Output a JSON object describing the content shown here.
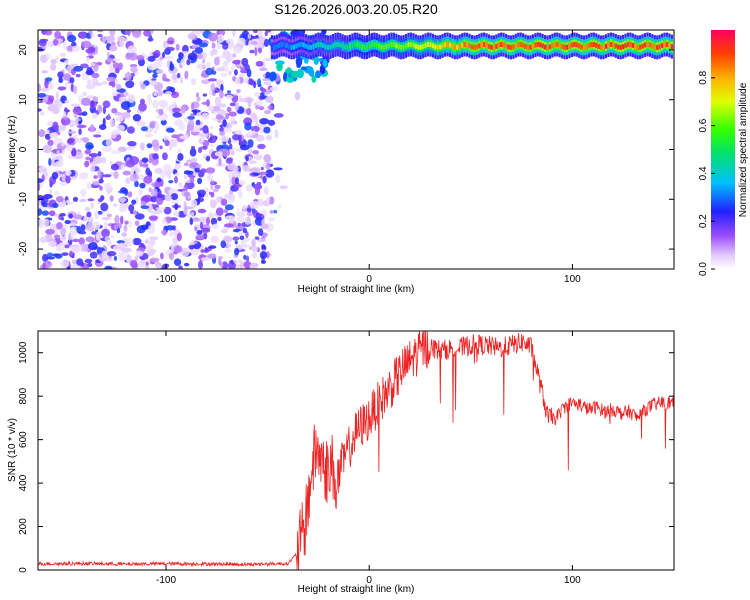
{
  "title": "S126.2026.003.20.05.R20",
  "colors": {
    "snr_line": "#ee2222",
    "axis": "#000000",
    "background": "#ffffff"
  },
  "chart_data": [
    {
      "type": "heatmap",
      "title": "S126.2026.003.20.05.R20",
      "xlabel": "Height of straight line (km)",
      "ylabel": "Frequency (Hz)",
      "xlim": [
        -163,
        150
      ],
      "ylim": [
        -24,
        24
      ],
      "x_ticks": [
        -100,
        0,
        100
      ],
      "y_ticks": [
        -20,
        -10,
        0,
        10,
        20
      ],
      "grid": false,
      "colorbar": {
        "label": "Normalized spectral amplitude",
        "range": [
          0,
          1
        ],
        "ticks": [
          0.0,
          0.2,
          0.4,
          0.6,
          0.8
        ],
        "colormap": "rainbow_white_low"
      },
      "features": {
        "noise_region_x": [
          -163,
          -48
        ],
        "noise_region_freq": [
          -24,
          24
        ],
        "noise_amplitude": "0.0-0.25",
        "carrier_start_x": -48,
        "carrier_frequency_hz": 20.8,
        "carrier_peak_amplitude": 0.95
      }
    },
    {
      "type": "line",
      "xlabel": "Height of straight line (km)",
      "ylabel": "SNR (10 * v/v)",
      "xlim": [
        -163,
        150
      ],
      "ylim": [
        0,
        1100
      ],
      "x_ticks": [
        -100,
        0,
        100
      ],
      "y_ticks": [
        0,
        200,
        400,
        600,
        800,
        1000
      ],
      "grid": false,
      "series": [
        {
          "x": [
            -163,
            -140,
            -120,
            -100,
            -80,
            -60,
            -40,
            -36,
            -32,
            -30,
            -28,
            -26,
            -24,
            -22,
            -20,
            -18,
            -16,
            -14,
            -10,
            -6,
            -2,
            0,
            4,
            8,
            12,
            16,
            20,
            24,
            28,
            32,
            36,
            40,
            44,
            48,
            52,
            56,
            60,
            64,
            68,
            72,
            76,
            80,
            84,
            88,
            92,
            96,
            100,
            104,
            108,
            112,
            116,
            120,
            124,
            128,
            132,
            136,
            140,
            144,
            150
          ],
          "y": [
            28,
            30,
            27,
            29,
            28,
            26,
            30,
            70,
            180,
            330,
            470,
            560,
            520,
            470,
            450,
            480,
            380,
            470,
            560,
            640,
            680,
            700,
            760,
            810,
            860,
            920,
            960,
            1000,
            1030,
            1020,
            1010,
            1020,
            1020,
            1030,
            1040,
            1035,
            1030,
            1020,
            1030,
            1040,
            1050,
            1020,
            860,
            700,
            700,
            750,
            770,
            760,
            740,
            750,
            730,
            740,
            720,
            730,
            700,
            740,
            760,
            770,
            770
          ]
        }
      ]
    }
  ]
}
